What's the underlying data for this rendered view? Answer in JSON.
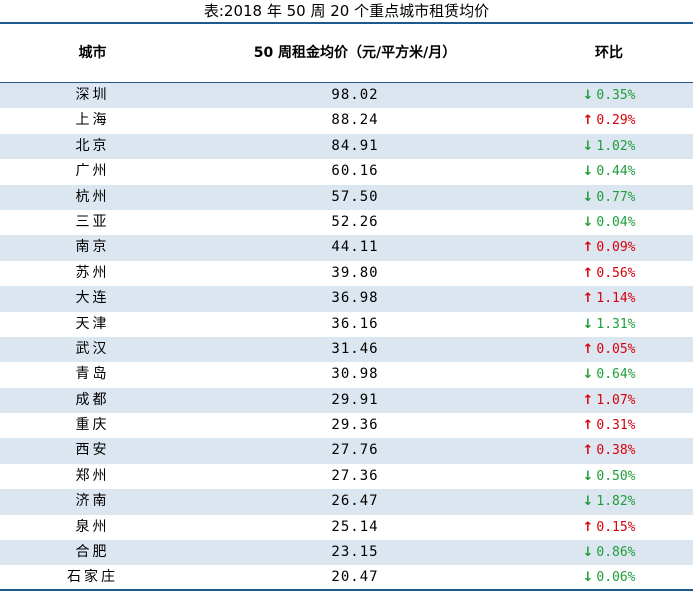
{
  "caption": "表:2018 年 50 周 20 个重点城市租赁均价",
  "columns": {
    "city": "城市",
    "price": "50 周租金均价（元/平方米/月）",
    "change": "环比"
  },
  "colors": {
    "up": "#d8000c",
    "down": "#1e9e3a",
    "stripe": "#dce6f0",
    "rule": "#1e5a8e"
  },
  "rows": [
    {
      "city": "深圳",
      "price": "98.02",
      "direction": "down",
      "change": "0.35%"
    },
    {
      "city": "上海",
      "price": "88.24",
      "direction": "up",
      "change": "0.29%"
    },
    {
      "city": "北京",
      "price": "84.91",
      "direction": "down",
      "change": "1.02%"
    },
    {
      "city": "广州",
      "price": "60.16",
      "direction": "down",
      "change": "0.44%"
    },
    {
      "city": "杭州",
      "price": "57.50",
      "direction": "down",
      "change": "0.77%"
    },
    {
      "city": "三亚",
      "price": "52.26",
      "direction": "down",
      "change": "0.04%"
    },
    {
      "city": "南京",
      "price": "44.11",
      "direction": "up",
      "change": "0.09%"
    },
    {
      "city": "苏州",
      "price": "39.80",
      "direction": "up",
      "change": "0.56%"
    },
    {
      "city": "大连",
      "price": "36.98",
      "direction": "up",
      "change": "1.14%"
    },
    {
      "city": "天津",
      "price": "36.16",
      "direction": "down",
      "change": "1.31%"
    },
    {
      "city": "武汉",
      "price": "31.46",
      "direction": "up",
      "change": "0.05%"
    },
    {
      "city": "青岛",
      "price": "30.98",
      "direction": "down",
      "change": "0.64%"
    },
    {
      "city": "成都",
      "price": "29.91",
      "direction": "up",
      "change": "1.07%"
    },
    {
      "city": "重庆",
      "price": "29.36",
      "direction": "up",
      "change": "0.31%"
    },
    {
      "city": "西安",
      "price": "27.76",
      "direction": "up",
      "change": "0.38%"
    },
    {
      "city": "郑州",
      "price": "27.36",
      "direction": "down",
      "change": "0.50%"
    },
    {
      "city": "济南",
      "price": "26.47",
      "direction": "down",
      "change": "1.82%"
    },
    {
      "city": "泉州",
      "price": "25.14",
      "direction": "up",
      "change": "0.15%"
    },
    {
      "city": "合肥",
      "price": "23.15",
      "direction": "down",
      "change": "0.86%"
    },
    {
      "city": "石家庄",
      "price": "20.47",
      "direction": "down",
      "change": "0.06%"
    }
  ]
}
